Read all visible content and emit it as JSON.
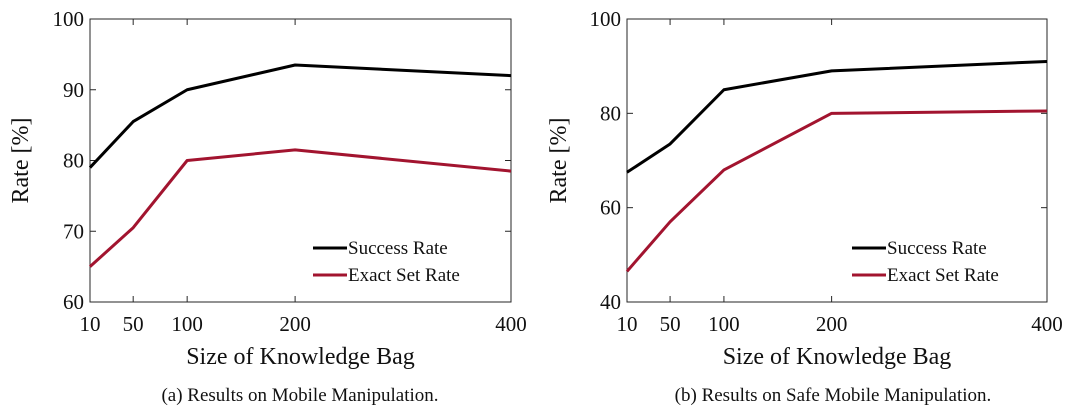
{
  "colors": {
    "success": "#000000",
    "exact": "#a2142f",
    "axis": "#262626"
  },
  "chart_data": [
    {
      "type": "line",
      "caption": "(a) Results on Mobile Manipulation.",
      "xlabel": "Size of Knowledge Bag",
      "ylabel": "Rate [%]",
      "x": [
        10,
        50,
        100,
        200,
        400
      ],
      "xticks": [
        "10",
        "50",
        "100",
        "200",
        "400"
      ],
      "xlim": [
        10,
        400
      ],
      "ylim": [
        60,
        100
      ],
      "yticks": [
        "60",
        "70",
        "80",
        "90",
        "100"
      ],
      "grid": false,
      "legend_position": "bottom-right",
      "series": [
        {
          "name": "Success Rate",
          "color_key": "success",
          "values": [
            79,
            85.5,
            90,
            93.5,
            92
          ]
        },
        {
          "name": "Exact Set Rate",
          "color_key": "exact",
          "values": [
            65,
            70.5,
            80,
            81.5,
            78.5
          ]
        }
      ]
    },
    {
      "type": "line",
      "caption": "(b) Results on Safe Mobile Manipulation.",
      "xlabel": "Size of Knowledge Bag",
      "ylabel": "Rate [%]",
      "x": [
        10,
        50,
        100,
        200,
        400
      ],
      "xticks": [
        "10",
        "50",
        "100",
        "200",
        "400"
      ],
      "xlim": [
        10,
        400
      ],
      "ylim": [
        40,
        100
      ],
      "yticks": [
        "40",
        "60",
        "80",
        "100"
      ],
      "grid": false,
      "legend_position": "bottom-right",
      "series": [
        {
          "name": "Success Rate",
          "color_key": "success",
          "values": [
            67.5,
            73.5,
            85,
            89,
            91
          ]
        },
        {
          "name": "Exact Set Rate",
          "color_key": "exact",
          "values": [
            46.5,
            57,
            68,
            80,
            80.5
          ]
        }
      ]
    }
  ]
}
